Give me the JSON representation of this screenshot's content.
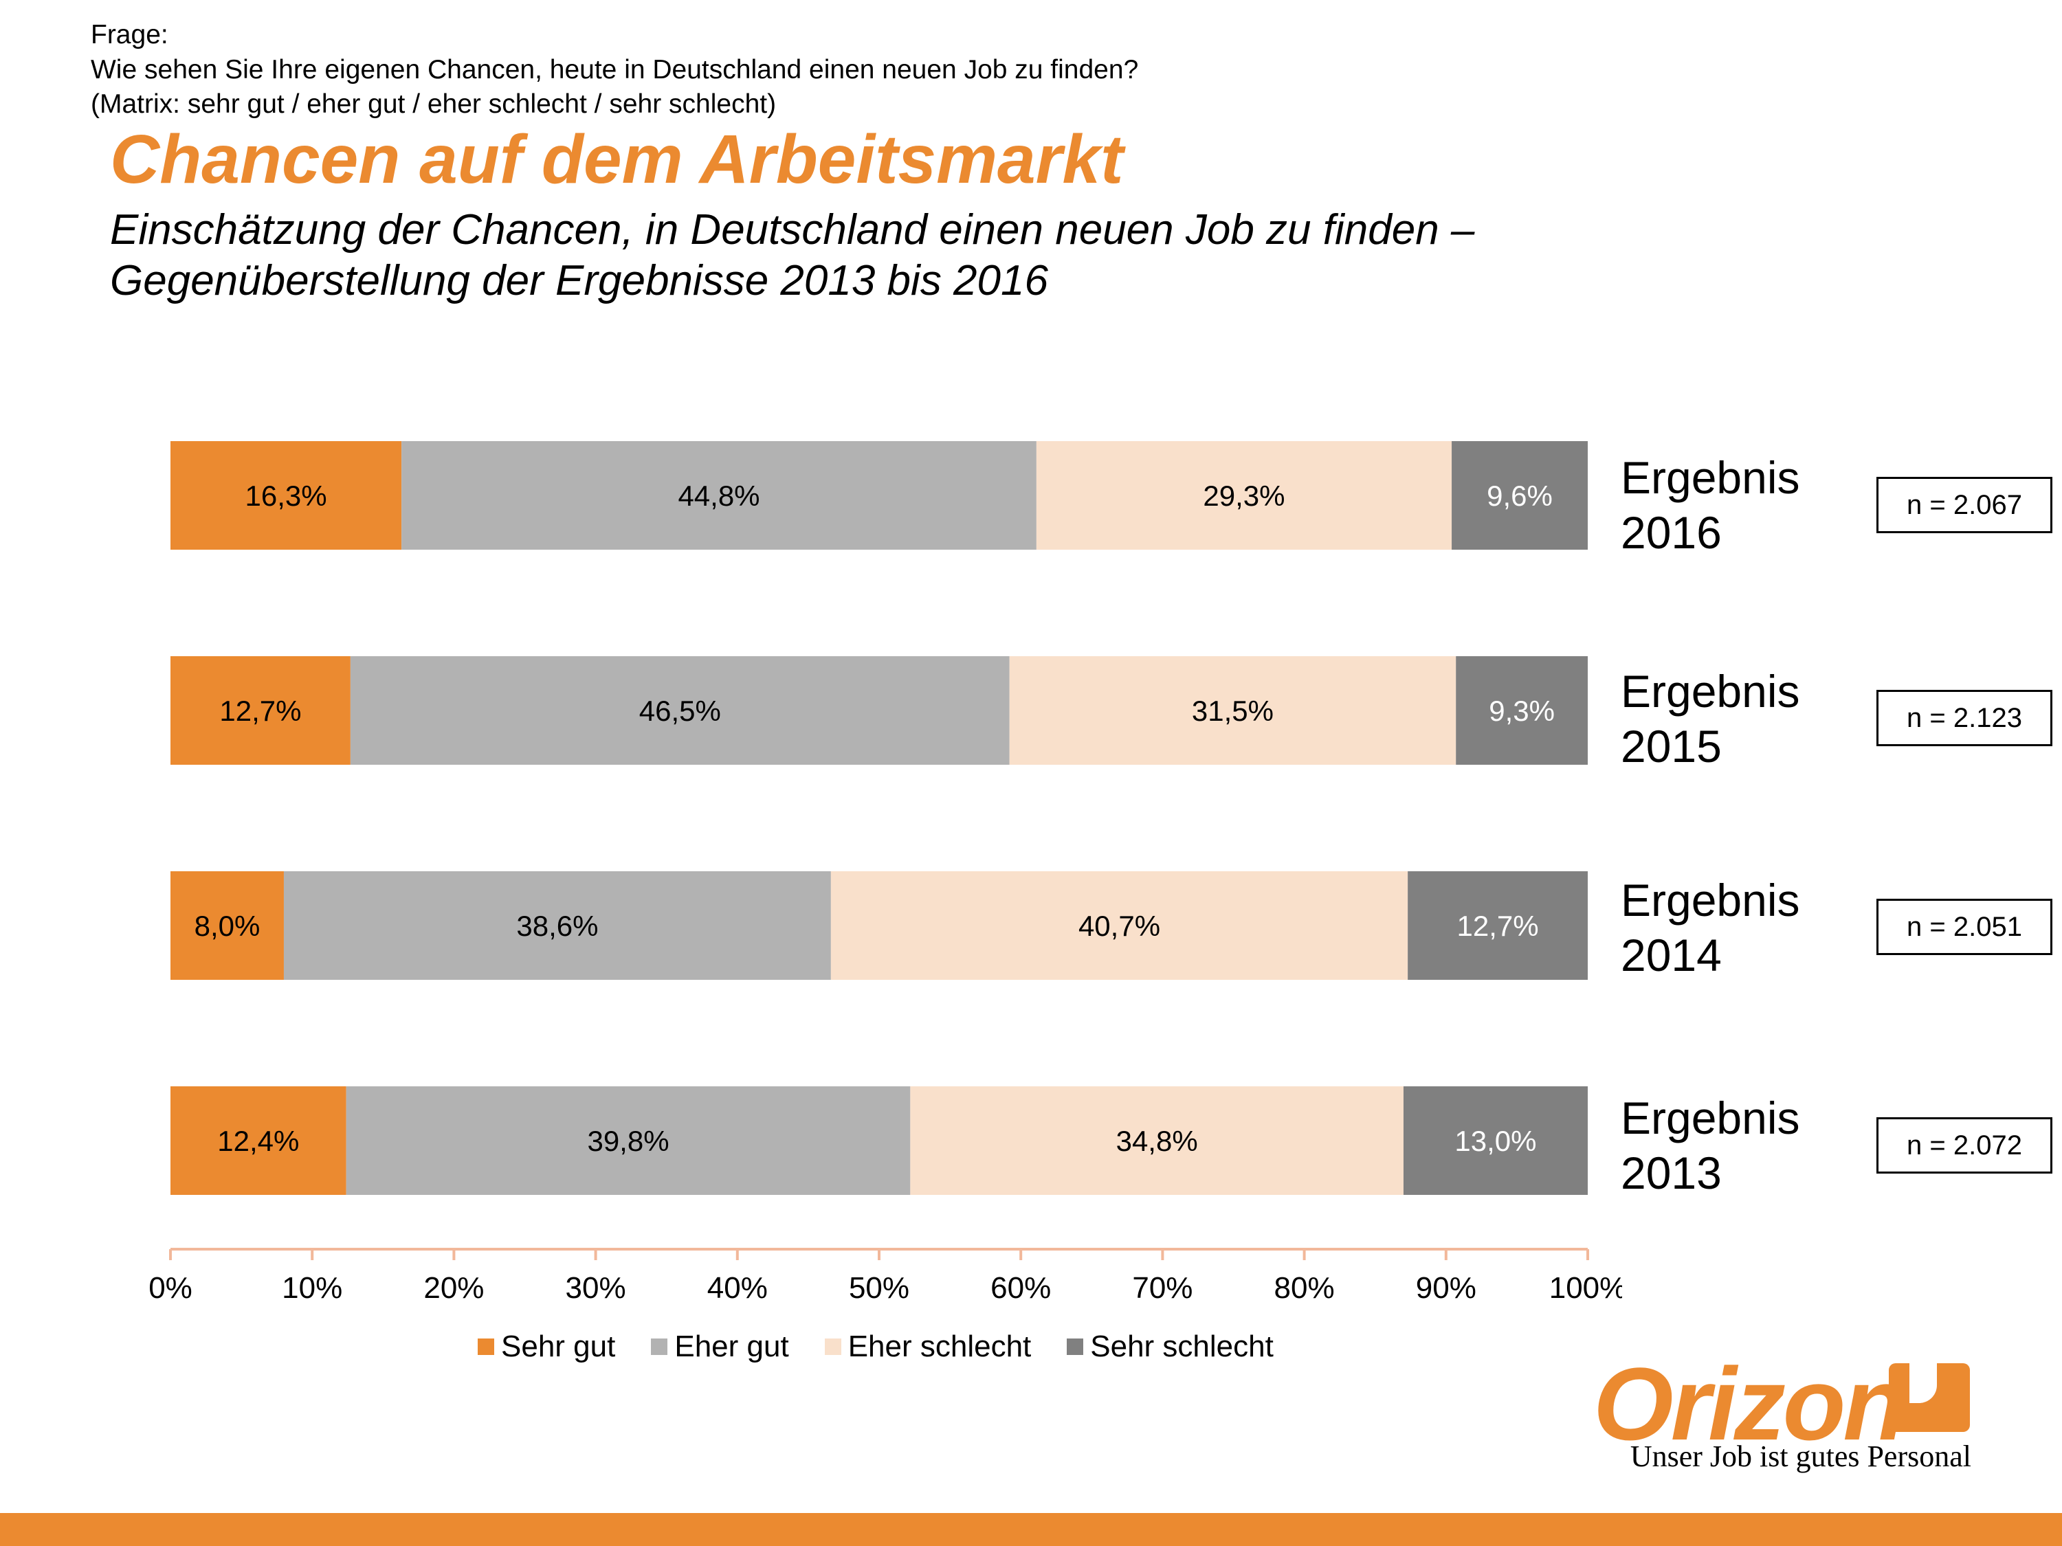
{
  "question": {
    "lines": [
      "Frage:",
      "Wie sehen Sie Ihre eigenen Chancen, heute in Deutschland einen neuen Job zu finden?",
      "(Matrix: sehr gut / eher gut / eher schlecht / sehr schlecht)"
    ]
  },
  "title": "Chancen auf dem Arbeitsmarkt",
  "subtitle": {
    "lines": [
      "Einschätzung der Chancen, in Deutschland einen neuen Job zu finden –",
      "Gegenüberstellung der Ergebnisse 2013 bis 2016"
    ]
  },
  "rows": [
    {
      "label": "Ergebnis\n2016",
      "n": "n = 2.067"
    },
    {
      "label": "Ergebnis\n2015",
      "n": "n = 2.123"
    },
    {
      "label": "Ergebnis\n2014",
      "n": "n = 2.051"
    },
    {
      "label": "Ergebnis\n2013",
      "n": "n = 2.072"
    }
  ],
  "chart_data": {
    "type": "bar",
    "orientation": "horizontal",
    "stacked": true,
    "title": "Chancen auf dem Arbeitsmarkt",
    "categories": [
      "Ergebnis 2016",
      "Ergebnis 2015",
      "Ergebnis 2014",
      "Ergebnis 2013"
    ],
    "series": [
      {
        "name": "Sehr gut",
        "color": "#eb8a30",
        "values": [
          16.3,
          12.7,
          8.0,
          12.4
        ],
        "labels": [
          "16,3%",
          "12,7%",
          "8,0%",
          "12,4%"
        ],
        "label_color": "#000000"
      },
      {
        "name": "Eher gut",
        "color": "#b2b2b2",
        "values": [
          44.8,
          46.5,
          38.6,
          39.8
        ],
        "labels": [
          "44,8%",
          "46,5%",
          "38,6%",
          "39,8%"
        ],
        "label_color": "#000000"
      },
      {
        "name": "Eher schlecht",
        "color": "#f9e0cb",
        "values": [
          29.3,
          31.5,
          40.7,
          34.8
        ],
        "labels": [
          "29,3%",
          "31,5%",
          "40,7%",
          "34,8%"
        ],
        "label_color": "#000000"
      },
      {
        "name": "Sehr schlecht",
        "color": "#808080",
        "values": [
          9.6,
          9.3,
          12.7,
          13.0
        ],
        "labels": [
          "9,6%",
          "9,3%",
          "12,7%",
          "13,0%"
        ],
        "label_color": "#ffffff"
      }
    ],
    "xlim": [
      0,
      100
    ],
    "xticks": [
      "0%",
      "10%",
      "20%",
      "30%",
      "40%",
      "50%",
      "60%",
      "70%",
      "80%",
      "90%",
      "100%"
    ],
    "axis_color": "#f2b89a",
    "legend_position": "bottom",
    "grid": false
  },
  "legend": [
    "Sehr gut",
    "Eher gut",
    "Eher schlecht",
    "Sehr schlecht"
  ],
  "logo": {
    "word": "Orizon",
    "tagline": "Unser Job ist gutes Personal"
  },
  "colors": {
    "accent": "#eb8a30"
  }
}
